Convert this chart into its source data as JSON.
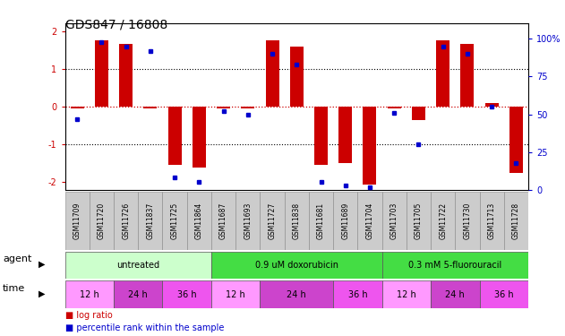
{
  "title": "GDS847 / 16808",
  "samples": [
    "GSM11709",
    "GSM11720",
    "GSM11726",
    "GSM11837",
    "GSM11725",
    "GSM11864",
    "GSM11687",
    "GSM11693",
    "GSM11727",
    "GSM11838",
    "GSM11681",
    "GSM11689",
    "GSM11704",
    "GSM11703",
    "GSM11705",
    "GSM11722",
    "GSM11730",
    "GSM11713",
    "GSM11728"
  ],
  "log_ratio": [
    -0.05,
    1.75,
    1.65,
    -0.05,
    -1.55,
    -1.6,
    -0.05,
    -0.05,
    1.75,
    1.6,
    -1.55,
    -1.5,
    -2.05,
    -0.05,
    -0.35,
    1.75,
    1.65,
    0.1,
    -1.75
  ],
  "percentile_rank": [
    47,
    98,
    95,
    92,
    8,
    5,
    52,
    50,
    90,
    83,
    5,
    3,
    2,
    51,
    30,
    95,
    90,
    55,
    18
  ],
  "ylim": [
    -2.2,
    2.2
  ],
  "yticks_left": [
    -2,
    -1,
    0,
    1,
    2
  ],
  "yticks_right": [
    0,
    25,
    50,
    75,
    100
  ],
  "bar_color": "#cc0000",
  "dot_color": "#0000cc",
  "hline_zero_color": "#cc0000",
  "hline_other_color": "#000000",
  "agent_groups": [
    {
      "label": "untreated",
      "start": 0,
      "end": 6,
      "color": "#ccffcc"
    },
    {
      "label": "0.9 uM doxorubicin",
      "start": 6,
      "end": 13,
      "color": "#44dd44"
    },
    {
      "label": "0.3 mM 5-fluorouracil",
      "start": 13,
      "end": 19,
      "color": "#44dd44"
    }
  ],
  "agent_colors": [
    "#ccffcc",
    "#44dd44",
    "#44dd44"
  ],
  "time_groups": [
    {
      "label": "12 h",
      "start": 0,
      "end": 2,
      "color": "#ff99ff"
    },
    {
      "label": "24 h",
      "start": 2,
      "end": 4,
      "color": "#cc44cc"
    },
    {
      "label": "36 h",
      "start": 4,
      "end": 6,
      "color": "#ee55ee"
    },
    {
      "label": "12 h",
      "start": 6,
      "end": 8,
      "color": "#ff99ff"
    },
    {
      "label": "24 h",
      "start": 8,
      "end": 11,
      "color": "#cc44cc"
    },
    {
      "label": "36 h",
      "start": 11,
      "end": 13,
      "color": "#ee55ee"
    },
    {
      "label": "12 h",
      "start": 13,
      "end": 15,
      "color": "#ff99ff"
    },
    {
      "label": "24 h",
      "start": 15,
      "end": 17,
      "color": "#cc44cc"
    },
    {
      "label": "36 h",
      "start": 17,
      "end": 19,
      "color": "#ee55ee"
    }
  ],
  "sample_label_bg": "#cccccc",
  "background_color": "#ffffff",
  "title_fontsize": 10,
  "tick_fontsize": 7,
  "sample_fontsize": 5.5,
  "row_label_fontsize": 8,
  "time_agent_fontsize": 7,
  "legend_fontsize": 7
}
